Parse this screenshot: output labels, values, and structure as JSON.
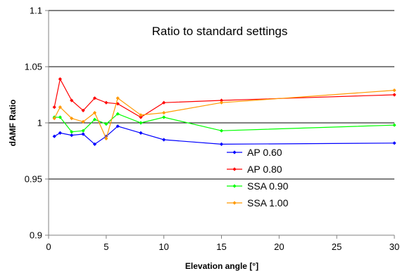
{
  "chart_data": {
    "type": "line",
    "title": "Ratio to standard settings",
    "xlabel": "Elevation angle [°]",
    "ylabel": "dAMF Ratio",
    "xlim": [
      0,
      30
    ],
    "ylim": [
      0.9,
      1.1
    ],
    "x_ticks": [
      0,
      5,
      10,
      15,
      20,
      25,
      30
    ],
    "y_ticks": [
      0.9,
      0.95,
      1,
      1.05,
      1.1
    ],
    "x_tick_labels": [
      "0",
      "5",
      "10",
      "15",
      "20",
      "25",
      "30"
    ],
    "y_tick_labels": [
      "0.9",
      "0.95",
      "1",
      "1.05",
      "1.1"
    ],
    "grid": "horizontal",
    "legend_position": "right",
    "series": [
      {
        "name": "AP 0.60",
        "color": "#0000ff",
        "x": [
          0.5,
          1,
          2,
          3,
          4,
          5,
          6,
          8,
          10,
          15,
          30
        ],
        "y": [
          0.988,
          0.991,
          0.989,
          0.99,
          0.981,
          0.988,
          0.997,
          0.991,
          0.985,
          0.981,
          0.982
        ]
      },
      {
        "name": "AP 0.80",
        "color": "#ff0000",
        "x": [
          0.5,
          1,
          2,
          3,
          4,
          5,
          6,
          8,
          10,
          15,
          30
        ],
        "y": [
          1.014,
          1.039,
          1.02,
          1.011,
          1.022,
          1.018,
          1.017,
          1.005,
          1.018,
          1.02,
          1.025
        ]
      },
      {
        "name": "SSA 0.90",
        "color": "#00ff00",
        "x": [
          0.5,
          1,
          2,
          3,
          4,
          5,
          6,
          8,
          10,
          15,
          30
        ],
        "y": [
          1.005,
          1.005,
          0.992,
          0.993,
          1.003,
          0.999,
          1.008,
          1.0,
          1.005,
          0.993,
          0.998
        ]
      },
      {
        "name": "SSA 1.00",
        "color": "#ff9900",
        "x": [
          0.5,
          1,
          2,
          3,
          4,
          5,
          6,
          8,
          10,
          15,
          30
        ],
        "y": [
          1.004,
          1.014,
          1.004,
          1.001,
          1.009,
          0.986,
          1.022,
          1.007,
          1.009,
          1.018,
          1.029
        ]
      }
    ]
  }
}
